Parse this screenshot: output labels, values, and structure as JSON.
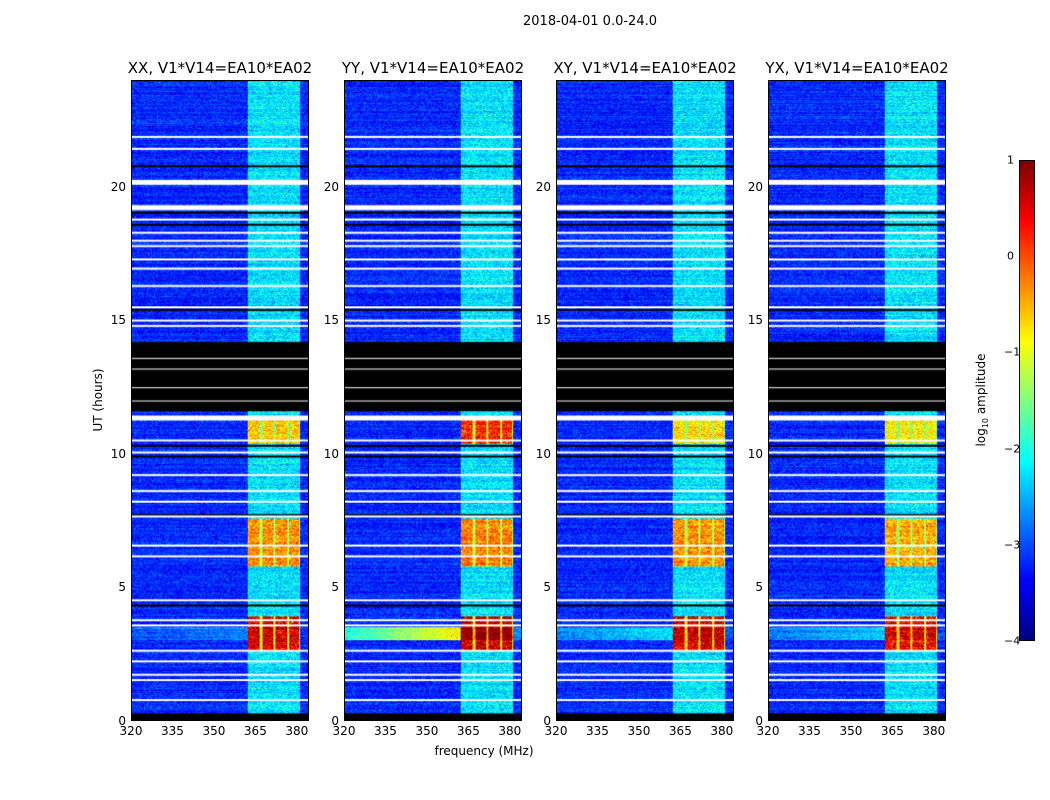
{
  "title": "2018-04-01 0.0-24.0",
  "chart_data": {
    "type": "heatmap",
    "title": "2018-04-01 0.0-24.0",
    "xlabel": "frequency (MHz)",
    "ylabel": "UT (hours)",
    "xlim": [
      320,
      384.4
    ],
    "ylim": [
      0,
      24
    ],
    "xticks": [
      "320",
      "335",
      "350",
      "365",
      "380"
    ],
    "xtick_values": [
      320,
      335,
      350,
      365,
      380
    ],
    "yticks": [
      "0",
      "5",
      "10",
      "15",
      "20"
    ],
    "ytick_values": [
      0,
      5,
      10,
      15,
      20
    ],
    "colormap": "jet",
    "colorbar": {
      "label_prefix": "log",
      "label_sub": "10",
      "label_suffix": " amplitude",
      "range": [
        -4,
        1
      ],
      "ticks": [
        "1",
        "0",
        "−1",
        "−2",
        "−3",
        "−4"
      ],
      "tick_values": [
        1,
        0,
        -1,
        -2,
        -3,
        -4
      ]
    },
    "panels": [
      {
        "title": "XX, V1*V14=EA10*EA02",
        "band_boost": {
          "3.2": 2.9,
          "6.8": 2.0,
          "10.9": 1.7
        },
        "broad_3_2": 0.5
      },
      {
        "title": "YY, V1*V14=EA10*EA02",
        "band_boost": {
          "3.2": 3.0,
          "6.8": 2.1,
          "10.9": 2.6
        },
        "broad_3_2": 2.4
      },
      {
        "title": "XY, V1*V14=EA10*EA02",
        "band_boost": {
          "3.2": 2.9,
          "6.8": 2.0,
          "10.9": 1.6
        },
        "broad_3_2": 0.9
      },
      {
        "title": "YX, V1*V14=EA10*EA02",
        "band_boost": {
          "3.2": 2.8,
          "6.8": 1.9,
          "10.9": 1.5
        },
        "broad_3_2": 0.8
      }
    ],
    "background_level": -3.2,
    "rfi_band_mhz": [
      362,
      381.5
    ],
    "subband_edges_mhz": [
      362,
      367,
      372,
      377,
      381.5
    ],
    "events_hours": [
      [
        2.6,
        3.9,
        "3.2"
      ],
      [
        5.8,
        7.6,
        "6.8"
      ],
      [
        10.4,
        11.4,
        "10.9"
      ]
    ],
    "flagged_white_hours": [
      21.9,
      21.45,
      20.25,
      19.3,
      18.8,
      18.3,
      18.0,
      17.8,
      17.3,
      16.95,
      16.3,
      15.5,
      15.0,
      14.8,
      11.4,
      10.5,
      10.05,
      9.2,
      8.6,
      8.2,
      7.65,
      6.55,
      6.15,
      4.5,
      3.75,
      3.55,
      2.6,
      2.2,
      1.7,
      1.5,
      0.75
    ],
    "flagged_black_hours": [
      20.8,
      19.05,
      18.6,
      15.4,
      10.3,
      9.9,
      7.7,
      4.3
    ],
    "black_block_hours": [
      11.6,
      14.2
    ]
  }
}
